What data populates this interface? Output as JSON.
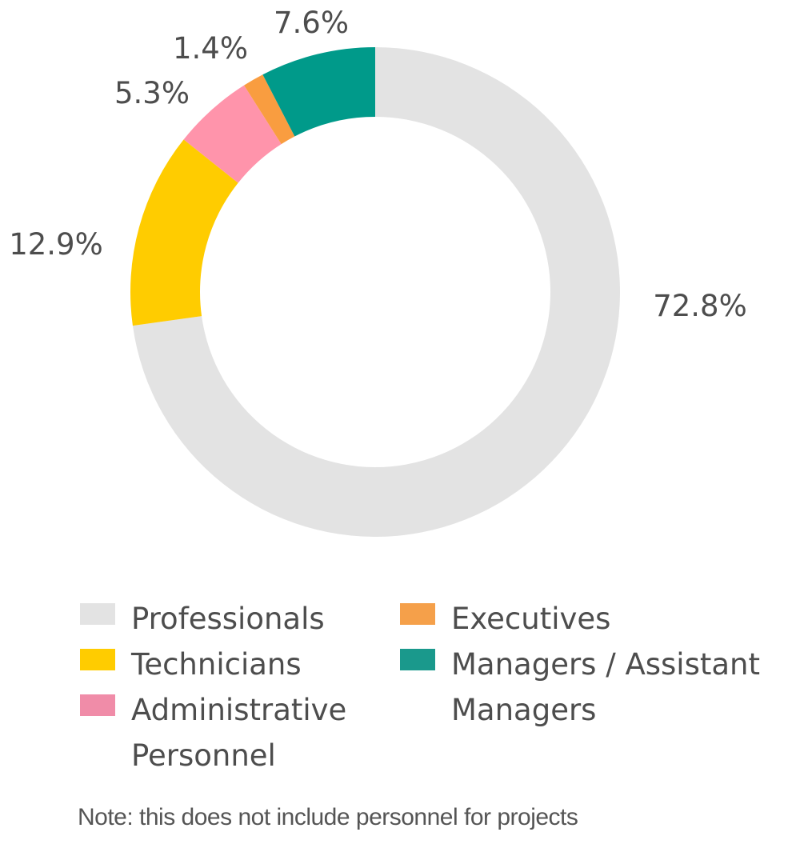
{
  "chart_data": {
    "type": "pie",
    "donut": true,
    "categories": [
      "Professionals",
      "Technicians",
      "Administrative Personnel",
      "Executives",
      "Managers / Assistant Managers"
    ],
    "values": [
      72.8,
      12.9,
      5.3,
      1.4,
      7.6
    ],
    "value_labels": [
      "72.8%",
      "12.9%",
      "5.3%",
      "1.4%",
      "7.6%"
    ],
    "colors": [
      "#e3e3e3",
      "#ffcc00",
      "#ff94ab",
      "#f99d40",
      "#009a8a"
    ],
    "legend_colors": [
      "#e3e3e3",
      "#ffcc00",
      "#f08ca8",
      "#f5a04a",
      "#1a998c"
    ],
    "slice_order_clockwise_from_top": [
      "Professionals",
      "Technicians",
      "Administrative Personnel",
      "Executives",
      "Managers / Assistant Managers"
    ],
    "legend_position": "bottom",
    "note": "Note: this does not include personnel for projects"
  }
}
